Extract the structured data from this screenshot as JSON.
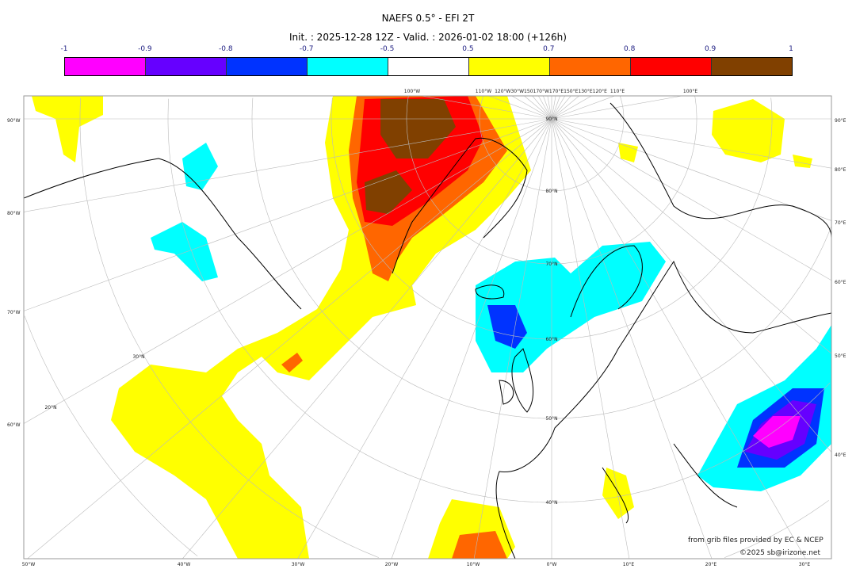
{
  "header": {
    "title": "NAEFS 0.5° - EFI 2T",
    "subtitle": "Init. : 2025-12-28 12Z - Valid. : 2026-01-02 18:00 (+126h)"
  },
  "colorbar": {
    "ticks": [
      "-1",
      "-0.9",
      "-0.8",
      "-0.7",
      "-0.5",
      "0.5",
      "0.7",
      "0.8",
      "0.9",
      "1"
    ],
    "colors": [
      "#ff00ff",
      "#6600ff",
      "#0033ff",
      "#00ffff",
      "#ffffff",
      "#ffff00",
      "#ff6600",
      "#ff0000",
      "#804000"
    ]
  },
  "map": {
    "projection": "polar stereographic",
    "bottom_labels": [
      "50°W",
      "40°W",
      "30°W",
      "20°W",
      "10°W",
      "0°W",
      "10°E",
      "20°E",
      "30°E"
    ],
    "left_labels": [
      "90°W",
      "80°W",
      "70°W",
      "60°W"
    ],
    "right_labels": [
      "90°E",
      "80°E",
      "70°E",
      "60°E",
      "50°E",
      "40°E"
    ],
    "top_labels": [
      "100°W",
      "110°W",
      "120°W30°W150170°W170°E150°E130°E120°E",
      "110°E",
      "100°E"
    ],
    "lat_labels": [
      "90°N",
      "80°N",
      "70°N",
      "60°N",
      "50°N",
      "40°N",
      "30°N",
      "20°N"
    ]
  },
  "credits": {
    "source": "from grib files provided by EC & NCEP",
    "copyright": "©2025 sb@irizone.net"
  }
}
